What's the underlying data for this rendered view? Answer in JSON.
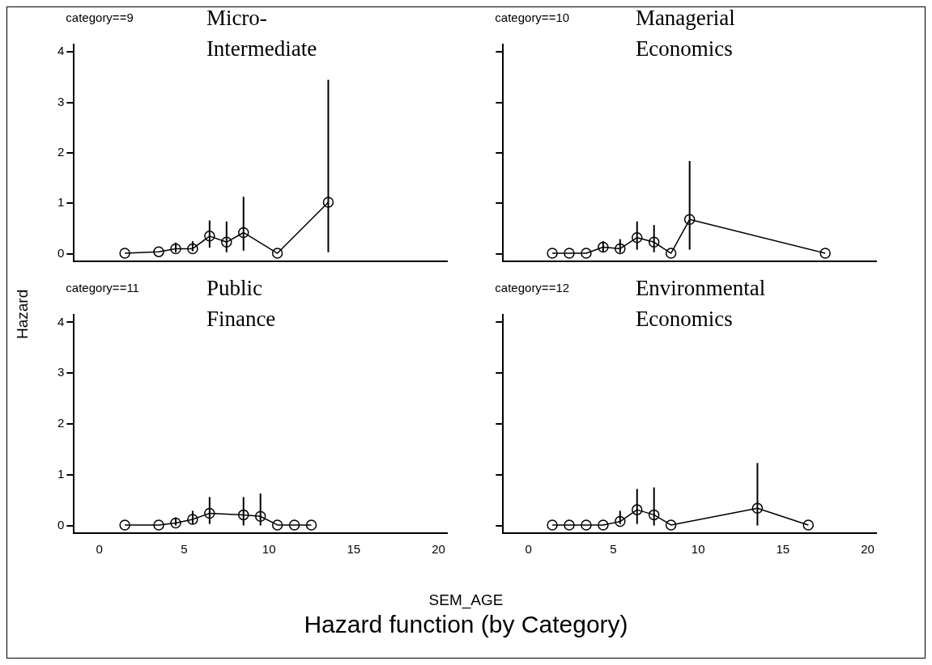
{
  "chart_data": [
    {
      "type": "line",
      "title": "category==9",
      "annotations": [
        "Micro-Intermediate"
      ],
      "ylabel": "Hazard",
      "marker": "circle",
      "tick_labels": "y",
      "xlim": [
        -1.5,
        20.5
      ],
      "xticks": [
        0,
        5,
        10,
        15,
        20
      ],
      "ylim": [
        -0.15,
        4.15
      ],
      "yticks": [
        0,
        1,
        2,
        3,
        4
      ],
      "series": [
        {
          "color": "#000000",
          "x": [
            1.5,
            3.5,
            4.5,
            5.5,
            6.5,
            7.5,
            8.5,
            10.5,
            13.5
          ],
          "values": [
            0.01,
            0.04,
            0.1,
            0.1,
            0.35,
            0.23,
            0.42,
            0.01,
            1.02
          ],
          "errors": [
            null,
            null,
            [
              0.03,
              0.22
            ],
            [
              0.05,
              0.25
            ],
            [
              0.12,
              0.66
            ],
            [
              0.03,
              0.64
            ],
            [
              0.06,
              1.13
            ],
            null,
            [
              0.03,
              3.45
            ]
          ]
        }
      ]
    },
    {
      "type": "line",
      "title": "category==10",
      "annotations": [
        "Managerial Economics"
      ],
      "marker": "circle",
      "tick_labels": false,
      "xlim": [
        -1.5,
        20.5
      ],
      "xticks": [
        0,
        5,
        10,
        15,
        20
      ],
      "ylim": [
        -0.15,
        4.15
      ],
      "yticks": [
        0,
        1,
        2,
        3,
        4
      ],
      "series": [
        {
          "color": "#000000",
          "x": [
            1.4,
            2.4,
            3.4,
            4.4,
            5.4,
            6.4,
            7.4,
            8.4,
            9.5,
            17.5
          ],
          "values": [
            0.01,
            0.01,
            0.01,
            0.13,
            0.1,
            0.32,
            0.23,
            0.01,
            0.68,
            0.01
          ],
          "errors": [
            null,
            null,
            null,
            [
              0.04,
              0.25
            ],
            [
              0.02,
              0.29
            ],
            [
              0.08,
              0.64
            ],
            [
              0.03,
              0.57
            ],
            null,
            [
              0.08,
              1.84
            ],
            null
          ]
        }
      ]
    },
    {
      "type": "line",
      "title": "category==11",
      "annotations": [
        "Public Finance",
        "Hazard function (by Category)"
      ],
      "xlabel": "SEM_AGE",
      "marker": "circle",
      "xlim": [
        -1.5,
        20.5
      ],
      "xticks": [
        0,
        5,
        10,
        15,
        20
      ],
      "ylim": [
        -0.15,
        4.15
      ],
      "yticks": [
        0,
        1,
        2,
        3,
        4
      ],
      "series": [
        {
          "color": "#000000",
          "x": [
            1.5,
            3.5,
            4.5,
            5.5,
            6.5,
            8.5,
            9.5,
            10.5,
            11.5,
            12.5
          ],
          "values": [
            0.01,
            0.01,
            0.05,
            0.12,
            0.24,
            0.21,
            0.18,
            0.01,
            0.01,
            0.01
          ],
          "errors": [
            null,
            null,
            [
              0.0,
              0.16
            ],
            [
              0.03,
              0.29
            ],
            [
              0.03,
              0.56
            ],
            [
              0.0,
              0.56
            ],
            [
              0.0,
              0.63
            ],
            null,
            null,
            null
          ]
        }
      ]
    },
    {
      "type": "line",
      "title": "category==12",
      "annotations": [
        "Environmental Economics"
      ],
      "marker": "circle",
      "tick_labels": "x",
      "xlim": [
        -1.5,
        20.5
      ],
      "xticks": [
        0,
        5,
        10,
        15,
        20
      ],
      "ylim": [
        -0.15,
        4.15
      ],
      "yticks": [
        0,
        1,
        2,
        3,
        4
      ],
      "series": [
        {
          "color": "#000000",
          "x": [
            1.4,
            2.4,
            3.4,
            4.4,
            5.4,
            6.4,
            7.4,
            8.4,
            13.5,
            16.5
          ],
          "values": [
            0.01,
            0.01,
            0.01,
            0.01,
            0.08,
            0.31,
            0.21,
            0.01,
            0.34,
            0.01
          ],
          "errors": [
            null,
            null,
            null,
            null,
            [
              0.03,
              0.29
            ],
            [
              0.03,
              0.72
            ],
            [
              0.0,
              0.75
            ],
            null,
            [
              0.0,
              1.23
            ],
            null
          ]
        }
      ]
    }
  ]
}
